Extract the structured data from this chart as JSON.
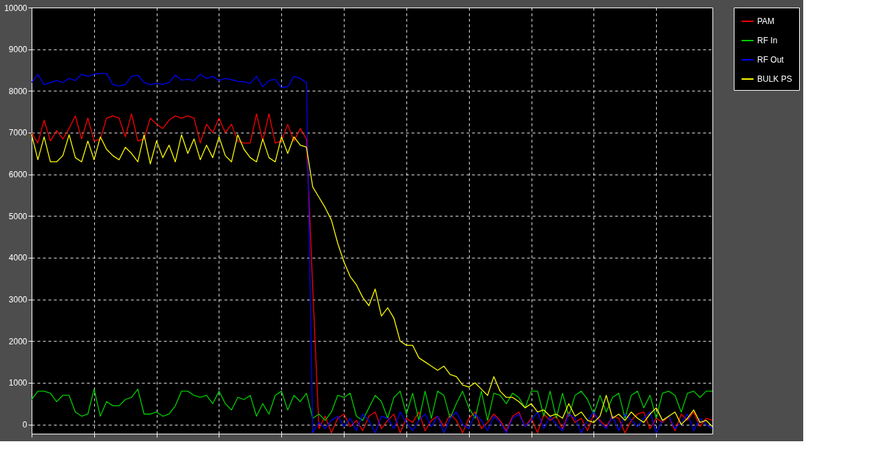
{
  "chart_data": {
    "type": "line",
    "categories": [
      null,
      null,
      null,
      null,
      null,
      null,
      null,
      null,
      null,
      null,
      null,
      null,
      null,
      null,
      null,
      null,
      null,
      null,
      null,
      null,
      null,
      null,
      null,
      null,
      null,
      null,
      null,
      null,
      null,
      null,
      null,
      null,
      null,
      null,
      null,
      null,
      null,
      null,
      null,
      null,
      null,
      null,
      null,
      null,
      null,
      null,
      null,
      null,
      null,
      null,
      null,
      null,
      null,
      null,
      null,
      null,
      null,
      null,
      null,
      null,
      null,
      null,
      null,
      null,
      null,
      null,
      null,
      null,
      null,
      null,
      null,
      null,
      null,
      null,
      null,
      null,
      null,
      null,
      null,
      null,
      null,
      null,
      null,
      null,
      null,
      null,
      null,
      null,
      null,
      null,
      null,
      null,
      null,
      null,
      null,
      null,
      null,
      null,
      null,
      null,
      null,
      null,
      null,
      null,
      null,
      null,
      null,
      null,
      null,
      null
    ],
    "ylim": [
      -220,
      10000
    ],
    "yticks": [
      0,
      1000,
      2000,
      3000,
      4000,
      5000,
      6000,
      7000,
      8000,
      9000,
      10000
    ],
    "tick_labels": "y",
    "grid": true,
    "legend": "right",
    "line_style": "solid",
    "marker": "none",
    "series": [
      {
        "name": "PAM",
        "color": "#ff0000",
        "values": [
          7000,
          6750,
          7300,
          6800,
          7050,
          6850,
          7100,
          7400,
          6850,
          7350,
          6800,
          6850,
          7350,
          7400,
          7350,
          6900,
          7450,
          6800,
          6850,
          7350,
          7200,
          7100,
          7300,
          7400,
          7350,
          7400,
          7350,
          6750,
          7200,
          7000,
          7350,
          7000,
          7200,
          6800,
          6750,
          6750,
          7450,
          6800,
          7450,
          6750,
          6800,
          7200,
          6800,
          7100,
          6850,
          3300,
          -100,
          200,
          -200,
          150,
          250,
          -50,
          100,
          -150,
          200,
          300,
          -100,
          100,
          250,
          -200,
          150,
          50,
          300,
          -150,
          100,
          200,
          -50,
          250,
          100,
          -200,
          150,
          300,
          -100,
          50,
          250,
          100,
          -150,
          200,
          300,
          -50,
          150,
          -200,
          250,
          100,
          200,
          -100,
          300,
          50,
          150,
          -150,
          250,
          100,
          -50,
          200,
          150,
          -200,
          100,
          250,
          300,
          -100,
          150,
          50,
          200,
          -150,
          250,
          100,
          300,
          -50,
          150,
          100
        ]
      },
      {
        "name": "RF In",
        "color": "#00d000",
        "values": [
          600,
          800,
          800,
          750,
          550,
          700,
          700,
          300,
          200,
          250,
          850,
          200,
          550,
          450,
          450,
          600,
          650,
          850,
          250,
          250,
          300,
          200,
          250,
          450,
          800,
          800,
          700,
          650,
          700,
          500,
          800,
          500,
          350,
          650,
          600,
          700,
          200,
          500,
          250,
          700,
          800,
          350,
          700,
          550,
          750,
          150,
          250,
          100,
          300,
          700,
          650,
          750,
          200,
          100,
          400,
          700,
          550,
          150,
          650,
          800,
          250,
          750,
          100,
          800,
          150,
          800,
          700,
          150,
          500,
          800,
          400,
          150,
          800,
          100,
          750,
          700,
          500,
          750,
          650,
          400,
          800,
          800,
          200,
          800,
          150,
          750,
          200,
          700,
          800,
          600,
          250,
          700,
          300,
          650,
          750,
          150,
          700,
          800,
          400,
          700,
          150,
          750,
          800,
          700,
          300,
          750,
          800,
          650,
          800,
          800
        ]
      },
      {
        "name": "RF Out",
        "color": "#0000ff",
        "values": [
          8200,
          8400,
          8150,
          8200,
          8250,
          8200,
          8300,
          8250,
          8400,
          8350,
          8400,
          8420,
          8420,
          8150,
          8120,
          8150,
          8350,
          8380,
          8200,
          8150,
          8180,
          8160,
          8200,
          8380,
          8260,
          8280,
          8250,
          8400,
          8300,
          8350,
          8250,
          8300,
          8270,
          8230,
          8220,
          8180,
          8350,
          8100,
          8250,
          8280,
          8080,
          8100,
          8350,
          8300,
          8200,
          -200,
          50,
          -100,
          100,
          200,
          -50,
          150,
          -150,
          250,
          100,
          -200,
          200,
          150,
          -100,
          300,
          50,
          -150,
          100,
          250,
          -50,
          200,
          -200,
          150,
          300,
          0,
          -100,
          250,
          100,
          -150,
          200,
          50,
          -200,
          150,
          250,
          -50,
          100,
          300,
          -100,
          200,
          0,
          -150,
          250,
          150,
          -200,
          100,
          300,
          50,
          -100,
          200,
          -150,
          250,
          100,
          -50,
          150,
          300,
          -200,
          100,
          200,
          -100,
          50,
          250,
          -150,
          150,
          0,
          -100
        ]
      },
      {
        "name": "BULK PS",
        "color": "#ffff00",
        "values": [
          6950,
          6350,
          6900,
          6300,
          6300,
          6450,
          6950,
          6400,
          6300,
          6800,
          6350,
          6900,
          6600,
          6450,
          6350,
          6650,
          6500,
          6300,
          6950,
          6250,
          6800,
          6400,
          6700,
          6300,
          6950,
          6500,
          6850,
          6350,
          6700,
          6400,
          6900,
          6450,
          6300,
          6950,
          6600,
          6400,
          6300,
          6850,
          6400,
          6300,
          6900,
          6500,
          6900,
          6700,
          6650,
          5700,
          5450,
          5200,
          4900,
          4350,
          3900,
          3550,
          3350,
          3050,
          2850,
          3250,
          2600,
          2800,
          2550,
          2000,
          1900,
          1900,
          1600,
          1500,
          1400,
          1300,
          1400,
          1200,
          1150,
          950,
          900,
          1000,
          850,
          700,
          1150,
          800,
          650,
          650,
          550,
          400,
          500,
          300,
          350,
          200,
          250,
          150,
          500,
          200,
          300,
          100,
          50,
          200,
          700,
          150,
          250,
          100,
          300,
          150,
          50,
          250,
          400,
          100,
          200,
          300,
          0,
          150,
          350,
          50,
          100,
          -50
        ]
      }
    ]
  }
}
